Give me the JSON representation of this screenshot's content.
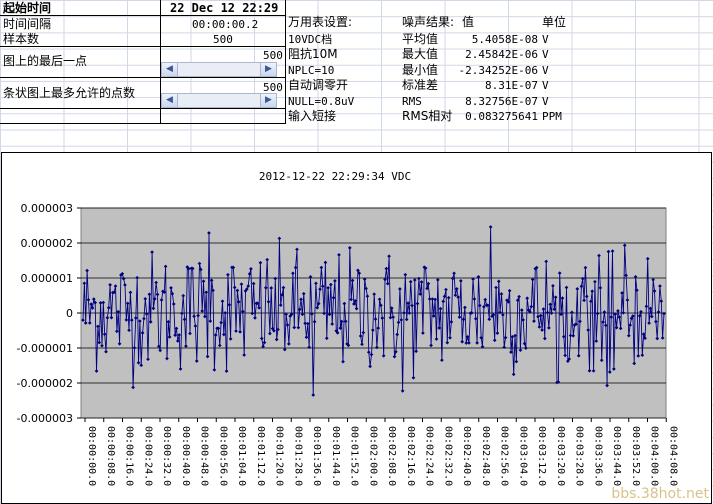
{
  "sheet": {
    "start_time_label": "起始时间",
    "start_time_value": "22 Dec 12 22:29",
    "interval_label": "时间间隔",
    "interval_value": "00:00:00.2",
    "samples_label": "样本数",
    "samples_value": "500",
    "last_point_label": "图上的最后一点",
    "last_point_value": "500",
    "max_points_label": "条状图上最多允许的点数",
    "max_points_value": "500"
  },
  "meter": {
    "header": "万用表设置:",
    "settings": [
      "10VDC档",
      "阻抗10M",
      "NPLC=10",
      "自动调零开",
      "NULL=0.8uV",
      "输入短接"
    ]
  },
  "noise": {
    "header_result": "噪声结果:",
    "header_value": "值",
    "header_unit": "单位",
    "rows": [
      {
        "name": "平均值",
        "value": "5.4058E-08",
        "unit": "V"
      },
      {
        "name": "最大值",
        "value": "2.45842E-06",
        "unit": "V"
      },
      {
        "name": "最小值",
        "value": "-2.34252E-06",
        "unit": "V"
      },
      {
        "name": "标准差",
        "value": "8.31E-07",
        "unit": "V"
      },
      {
        "name": "RMS",
        "value": "8.32756E-07",
        "unit": "V"
      },
      {
        "name": "RMS相对",
        "value": "0.083275641",
        "unit": "PPM"
      }
    ]
  },
  "watermark": "bbs.38hot.net",
  "colors": {
    "plot_bg": "#c0c0c0",
    "series": "#000080",
    "gridline": "#000000"
  },
  "chart_data": {
    "type": "line",
    "title": "2012-12-22 22:29:34 VDC",
    "xlabel": "",
    "ylabel": "",
    "ylim": [
      -3e-06,
      3e-06
    ],
    "yticks": [
      "0.000003",
      "0.000002",
      "0.000001",
      "0",
      "-0.000001",
      "-0.000002",
      "-0.000003"
    ],
    "ytick_values": [
      3e-06,
      2e-06,
      1e-06,
      0,
      -1e-06,
      -2e-06,
      -3e-06
    ],
    "xticks": [
      "00:00:00.0",
      "00:00:08.0",
      "00:00:16.0",
      "00:00:24.0",
      "00:00:32.0",
      "00:00:40.0",
      "00:00:48.0",
      "00:00:56.0",
      "00:01:04.0",
      "00:01:12.0",
      "00:01:20.0",
      "00:01:28.0",
      "00:01:36.0",
      "00:01:44.0",
      "00:01:52.0",
      "00:02:00.0",
      "00:02:08.0",
      "00:02:16.0",
      "00:02:24.0",
      "00:02:32.0",
      "00:02:40.0",
      "00:02:48.0",
      "00:02:56.0",
      "00:03:04.0",
      "00:03:12.0",
      "00:03:20.0",
      "00:03:28.0",
      "00:03:36.0",
      "00:03:44.0",
      "00:03:52.0",
      "00:04:00.0",
      "00:04:08.0"
    ],
    "xlim_seconds": [
      0,
      100
    ],
    "grid": true,
    "legend": "none",
    "samples": 500,
    "series_summary": {
      "mean": 5.4058e-08,
      "max": 2.45842e-06,
      "min": -2.34252e-06,
      "std": 8.31e-07
    }
  }
}
